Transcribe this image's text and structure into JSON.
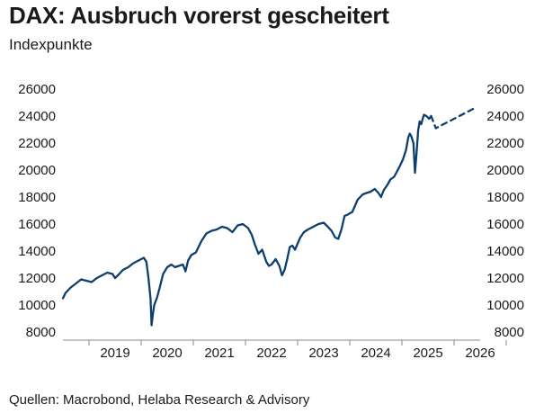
{
  "title": "DAX: Ausbruch vorerst gescheitert",
  "subtitle": "Indexpunkte",
  "source": "Quellen: Macrobond, Helaba Research & Advisory",
  "colors": {
    "line": "#0d3f6e",
    "text": "#1a1a1a"
  },
  "chart_data": {
    "type": "line",
    "title": "DAX: Ausbruch vorerst gescheitert",
    "ylabel": "Indexpunkte",
    "xlabel": "",
    "ylim": [
      8000,
      26000
    ],
    "y_ticks": [
      "26000",
      "24000",
      "22000",
      "20000",
      "18000",
      "16000",
      "14000",
      "12000",
      "10000",
      "8000"
    ],
    "y_tick_values": [
      26000,
      24000,
      22000,
      20000,
      18000,
      16000,
      14000,
      12000,
      10000,
      8000
    ],
    "x_ticks": [
      "2019",
      "2020",
      "2021",
      "2022",
      "2023",
      "2024",
      "2025",
      "2026"
    ],
    "xlim": [
      2018.5,
      2026.5
    ],
    "grid": false,
    "right_axis": true,
    "series": [
      {
        "style": "solid",
        "x": [
          2018.5,
          2018.55,
          2018.65,
          2018.75,
          2018.85,
          2018.95,
          2019.05,
          2019.15,
          2019.25,
          2019.35,
          2019.45,
          2019.5,
          2019.58,
          2019.65,
          2019.75,
          2019.85,
          2019.95,
          2020.05,
          2020.1,
          2020.14,
          2020.18,
          2020.2,
          2020.22,
          2020.25,
          2020.3,
          2020.35,
          2020.42,
          2020.5,
          2020.58,
          2020.65,
          2020.72,
          2020.8,
          2020.85,
          2020.9,
          2020.96,
          2021.05,
          2021.15,
          2021.25,
          2021.35,
          2021.45,
          2021.55,
          2021.65,
          2021.75,
          2021.85,
          2021.95,
          2022.05,
          2022.12,
          2022.18,
          2022.25,
          2022.32,
          2022.4,
          2022.45,
          2022.5,
          2022.58,
          2022.65,
          2022.7,
          2022.75,
          2022.8,
          2022.85,
          2022.9,
          2022.95,
          2023.05,
          2023.12,
          2023.2,
          2023.3,
          2023.4,
          2023.5,
          2023.58,
          2023.65,
          2023.72,
          2023.78,
          2023.84,
          2023.9,
          2023.96,
          2024.05,
          2024.15,
          2024.25,
          2024.32,
          2024.4,
          2024.48,
          2024.55,
          2024.6,
          2024.65,
          2024.72,
          2024.78,
          2024.85,
          2024.92,
          2024.96,
          2025.02,
          2025.08,
          2025.12,
          2025.15,
          2025.18,
          2025.22,
          2025.25,
          2025.28,
          2025.31,
          2025.34,
          2025.37,
          2025.42,
          2025.47,
          2025.52,
          2025.56
        ],
        "y": [
          10500,
          10900,
          11300,
          11600,
          11900,
          11800,
          11700,
          12000,
          12200,
          12400,
          12300,
          12000,
          12300,
          12600,
          12800,
          13100,
          13300,
          13500,
          13200,
          12000,
          10500,
          8500,
          9200,
          10000,
          10500,
          11200,
          12300,
          12800,
          13000,
          12800,
          12900,
          13000,
          12500,
          13300,
          13700,
          13900,
          14700,
          15300,
          15500,
          15600,
          15800,
          15700,
          15400,
          15900,
          16000,
          15700,
          15200,
          14500,
          13800,
          14100,
          13200,
          12900,
          13000,
          13400,
          12900,
          12200,
          12600,
          13400,
          14300,
          14400,
          14100,
          15000,
          15400,
          15600,
          15800,
          16000,
          16100,
          15800,
          15500,
          15000,
          14900,
          15600,
          16600,
          16700,
          16900,
          17800,
          18200,
          18300,
          18400,
          18600,
          18300,
          18000,
          18500,
          18900,
          19300,
          19500,
          20000,
          20300,
          20800,
          21500,
          22400,
          22700,
          22500,
          22000,
          19800,
          21200,
          22900,
          23600,
          23400,
          24100,
          24000,
          23800,
          24000
        ]
      },
      {
        "style": "dashed",
        "x": [
          2025.56,
          2025.65,
          2026.4
        ],
        "y": [
          24000,
          23100,
          24600
        ]
      }
    ]
  }
}
